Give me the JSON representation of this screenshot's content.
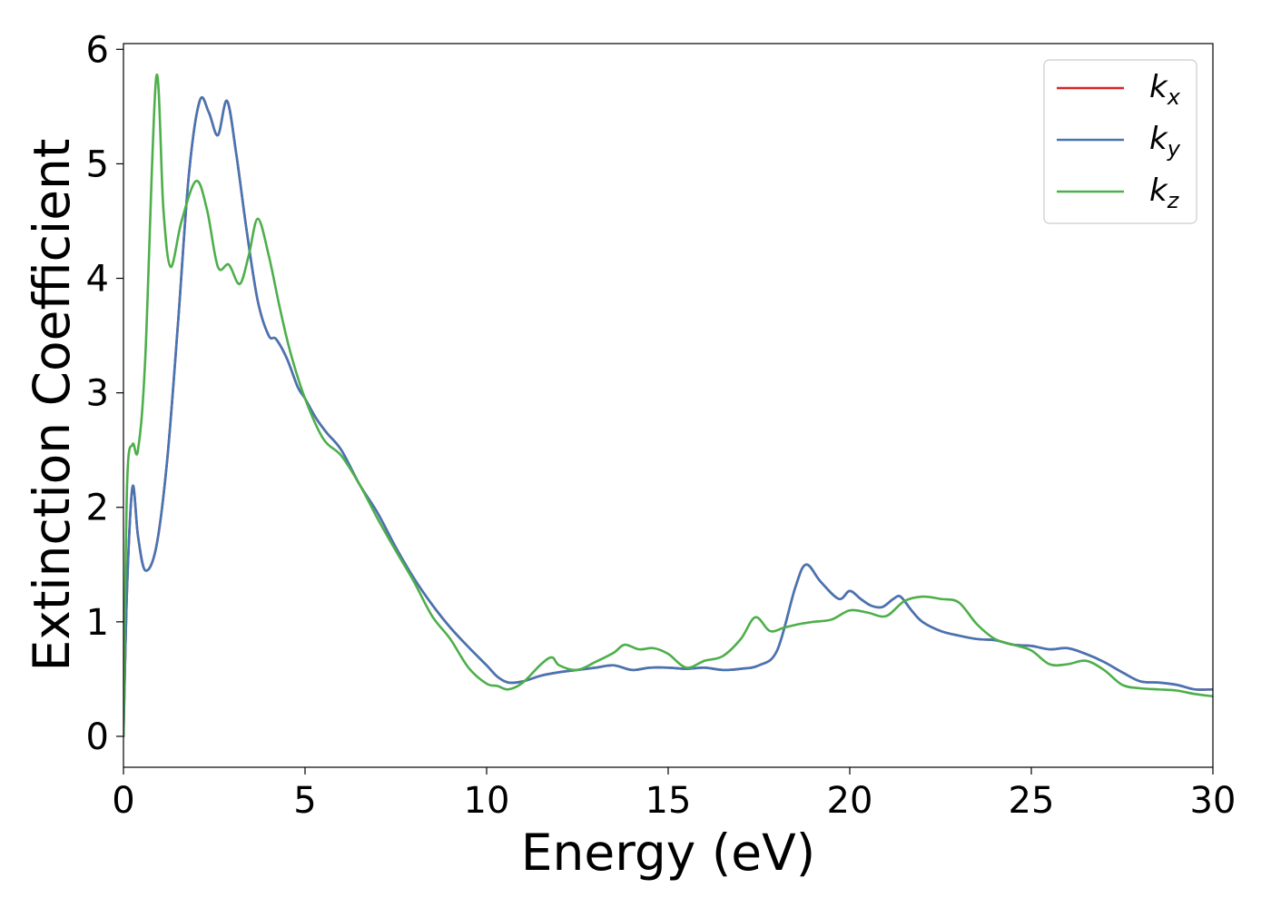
{
  "chart_data": {
    "type": "line",
    "xlabel": "Energy (eV)",
    "ylabel": "Extinction Coefficient",
    "xlim": [
      0,
      30
    ],
    "ylim": [
      -0.27,
      6.05
    ],
    "xticks": [
      0,
      5,
      10,
      15,
      20,
      25,
      30
    ],
    "yticks": [
      0,
      1,
      2,
      3,
      4,
      5,
      6
    ],
    "grid": false,
    "legend_position": "top-right",
    "series": [
      {
        "name": "k",
        "subscript": "x",
        "color": "#d62728",
        "x": [
          0,
          0.1,
          0.25,
          0.4,
          0.6,
          0.9,
          1.2,
          1.5,
          1.8,
          2.1,
          2.35,
          2.6,
          2.85,
          3.1,
          3.4,
          3.7,
          4.0,
          4.2,
          4.5,
          4.8,
          5.0,
          5.3,
          5.6,
          6.0,
          6.5,
          7.0,
          7.5,
          8.0,
          8.5,
          9.0,
          9.5,
          10.0,
          10.3,
          10.6,
          11.0,
          11.5,
          12.0,
          12.5,
          13.0,
          13.5,
          14.0,
          14.5,
          15.0,
          15.5,
          16.0,
          16.5,
          17.0,
          17.5,
          18.0,
          18.5,
          18.8,
          19.2,
          19.7,
          20.0,
          20.3,
          20.6,
          20.9,
          21.2,
          21.4,
          21.7,
          22.0,
          22.5,
          23.0,
          23.5,
          24.0,
          24.5,
          25.0,
          25.5,
          26.0,
          26.5,
          27.0,
          27.5,
          28.0,
          28.5,
          29.0,
          29.5,
          30.0
        ],
        "values": [
          0.0,
          1.3,
          2.18,
          1.75,
          1.45,
          1.65,
          2.4,
          3.6,
          4.9,
          5.55,
          5.45,
          5.25,
          5.55,
          5.1,
          4.4,
          3.8,
          3.5,
          3.47,
          3.3,
          3.05,
          2.95,
          2.78,
          2.65,
          2.5,
          2.2,
          1.95,
          1.65,
          1.38,
          1.15,
          0.95,
          0.78,
          0.62,
          0.52,
          0.47,
          0.48,
          0.53,
          0.56,
          0.58,
          0.6,
          0.62,
          0.58,
          0.6,
          0.6,
          0.59,
          0.6,
          0.58,
          0.59,
          0.62,
          0.75,
          1.3,
          1.5,
          1.35,
          1.2,
          1.27,
          1.2,
          1.14,
          1.13,
          1.2,
          1.22,
          1.1,
          1.0,
          0.92,
          0.88,
          0.85,
          0.84,
          0.8,
          0.79,
          0.76,
          0.77,
          0.72,
          0.65,
          0.56,
          0.48,
          0.47,
          0.45,
          0.41,
          0.41
        ]
      },
      {
        "name": "k",
        "subscript": "y",
        "color": "#4575b4",
        "x": [
          0,
          0.1,
          0.25,
          0.4,
          0.6,
          0.9,
          1.2,
          1.5,
          1.8,
          2.1,
          2.35,
          2.6,
          2.85,
          3.1,
          3.4,
          3.7,
          4.0,
          4.2,
          4.5,
          4.8,
          5.0,
          5.3,
          5.6,
          6.0,
          6.5,
          7.0,
          7.5,
          8.0,
          8.5,
          9.0,
          9.5,
          10.0,
          10.3,
          10.6,
          11.0,
          11.5,
          12.0,
          12.5,
          13.0,
          13.5,
          14.0,
          14.5,
          15.0,
          15.5,
          16.0,
          16.5,
          17.0,
          17.5,
          18.0,
          18.5,
          18.8,
          19.2,
          19.7,
          20.0,
          20.3,
          20.6,
          20.9,
          21.2,
          21.4,
          21.7,
          22.0,
          22.5,
          23.0,
          23.5,
          24.0,
          24.5,
          25.0,
          25.5,
          26.0,
          26.5,
          27.0,
          27.5,
          28.0,
          28.5,
          29.0,
          29.5,
          30.0
        ],
        "values": [
          0.0,
          1.3,
          2.18,
          1.75,
          1.45,
          1.65,
          2.4,
          3.6,
          4.9,
          5.55,
          5.45,
          5.25,
          5.55,
          5.1,
          4.4,
          3.8,
          3.5,
          3.47,
          3.3,
          3.05,
          2.95,
          2.78,
          2.65,
          2.5,
          2.2,
          1.95,
          1.65,
          1.38,
          1.15,
          0.95,
          0.78,
          0.62,
          0.52,
          0.47,
          0.48,
          0.53,
          0.56,
          0.58,
          0.6,
          0.62,
          0.58,
          0.6,
          0.6,
          0.59,
          0.6,
          0.58,
          0.59,
          0.62,
          0.75,
          1.3,
          1.5,
          1.35,
          1.2,
          1.27,
          1.2,
          1.14,
          1.13,
          1.2,
          1.22,
          1.1,
          1.0,
          0.92,
          0.88,
          0.85,
          0.84,
          0.8,
          0.79,
          0.76,
          0.77,
          0.72,
          0.65,
          0.56,
          0.48,
          0.47,
          0.45,
          0.41,
          0.41
        ]
      },
      {
        "name": "k",
        "subscript": "z",
        "color": "#4daf4a",
        "x": [
          0,
          0.1,
          0.25,
          0.4,
          0.6,
          0.9,
          1.1,
          1.3,
          1.6,
          2.0,
          2.3,
          2.6,
          2.9,
          3.2,
          3.45,
          3.7,
          4.0,
          4.3,
          4.6,
          5.0,
          5.5,
          6.0,
          6.5,
          7.0,
          7.5,
          8.0,
          8.5,
          9.0,
          9.5,
          10.0,
          10.3,
          10.6,
          11.0,
          11.5,
          11.8,
          12.0,
          12.5,
          13.0,
          13.5,
          13.8,
          14.2,
          14.6,
          15.0,
          15.5,
          16.0,
          16.5,
          17.0,
          17.4,
          17.8,
          18.2,
          18.6,
          19.0,
          19.5,
          20.0,
          20.5,
          21.0,
          21.5,
          22.0,
          22.5,
          23.0,
          23.5,
          24.0,
          24.5,
          25.0,
          25.5,
          26.0,
          26.5,
          27.0,
          27.5,
          28.0,
          28.5,
          29.0,
          29.5,
          30.0
        ],
        "values": [
          0.0,
          2.2,
          2.55,
          2.5,
          3.3,
          5.75,
          4.6,
          4.1,
          4.5,
          4.85,
          4.6,
          4.1,
          4.12,
          3.95,
          4.2,
          4.52,
          4.2,
          3.75,
          3.35,
          2.95,
          2.6,
          2.45,
          2.2,
          1.9,
          1.62,
          1.35,
          1.05,
          0.85,
          0.6,
          0.46,
          0.44,
          0.41,
          0.47,
          0.63,
          0.69,
          0.62,
          0.58,
          0.65,
          0.73,
          0.8,
          0.76,
          0.77,
          0.72,
          0.6,
          0.66,
          0.7,
          0.85,
          1.04,
          0.92,
          0.95,
          0.98,
          1.0,
          1.02,
          1.1,
          1.08,
          1.05,
          1.18,
          1.22,
          1.2,
          1.17,
          0.98,
          0.85,
          0.8,
          0.75,
          0.63,
          0.63,
          0.66,
          0.58,
          0.45,
          0.42,
          0.41,
          0.4,
          0.37,
          0.35
        ]
      }
    ]
  }
}
